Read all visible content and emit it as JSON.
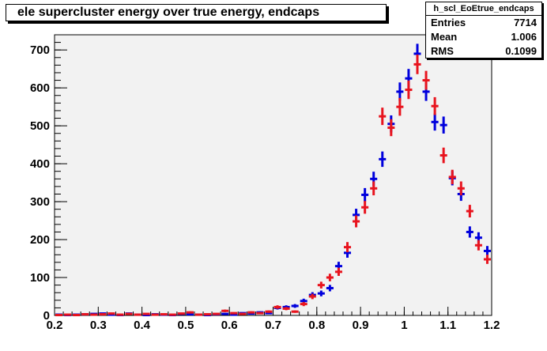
{
  "title": "ele supercluster energy over true energy, endcaps",
  "stats": {
    "name": "h_scl_EoEtrue_endcaps",
    "rows": [
      {
        "label": "Entries",
        "value": "7714"
      },
      {
        "label": "Mean",
        "value": "1.006"
      },
      {
        "label": "RMS",
        "value": "0.1099"
      }
    ]
  },
  "colors": {
    "frame_bg": "#f2f2f2",
    "blue": "#0000dd",
    "red": "#e8141e"
  },
  "chart_data": {
    "type": "scatter",
    "title": "ele supercluster energy over true energy, endcaps",
    "xlim": [
      0.2,
      1.2
    ],
    "ylim": [
      0,
      740
    ],
    "x_ticks": [
      "0.2",
      "0.3",
      "0.4",
      "0.5",
      "0.6",
      "0.7",
      "0.8",
      "0.9",
      "1",
      "1.1",
      "1.2"
    ],
    "y_ticks": [
      "0",
      "100",
      "200",
      "300",
      "400",
      "500",
      "600",
      "700"
    ],
    "bin_width": 0.02,
    "x": [
      0.21,
      0.23,
      0.25,
      0.27,
      0.29,
      0.31,
      0.33,
      0.35,
      0.37,
      0.39,
      0.41,
      0.43,
      0.45,
      0.47,
      0.49,
      0.51,
      0.53,
      0.55,
      0.57,
      0.59,
      0.61,
      0.63,
      0.65,
      0.67,
      0.69,
      0.71,
      0.73,
      0.75,
      0.77,
      0.79,
      0.81,
      0.83,
      0.85,
      0.87,
      0.89,
      0.91,
      0.93,
      0.95,
      0.97,
      0.99,
      1.01,
      1.03,
      1.05,
      1.07,
      1.09,
      1.11,
      1.13,
      1.15,
      1.17,
      1.19
    ],
    "series": [
      {
        "color": "#0000dd",
        "values": [
          2,
          1,
          2,
          3,
          4,
          5,
          2,
          1,
          5,
          2,
          1,
          3,
          2,
          1,
          4,
          3,
          2,
          1,
          3,
          4,
          2,
          6,
          5,
          8,
          6,
          20,
          22,
          25,
          38,
          54,
          58,
          72,
          130,
          165,
          265,
          318,
          360,
          412,
          505,
          590,
          625,
          690,
          590,
          510,
          502,
          362,
          320,
          220,
          205,
          170
        ]
      },
      {
        "color": "#e8141e",
        "values": [
          1,
          2,
          1,
          3,
          2,
          3,
          5,
          2,
          4,
          2,
          4,
          2,
          3,
          2,
          5,
          8,
          2,
          3,
          4,
          12,
          6,
          4,
          8,
          6,
          10,
          22,
          18,
          10,
          30,
          50,
          80,
          100,
          115,
          180,
          248,
          285,
          335,
          525,
          495,
          550,
          595,
          662,
          620,
          552,
          422,
          365,
          335,
          275,
          185,
          148
        ]
      }
    ]
  }
}
